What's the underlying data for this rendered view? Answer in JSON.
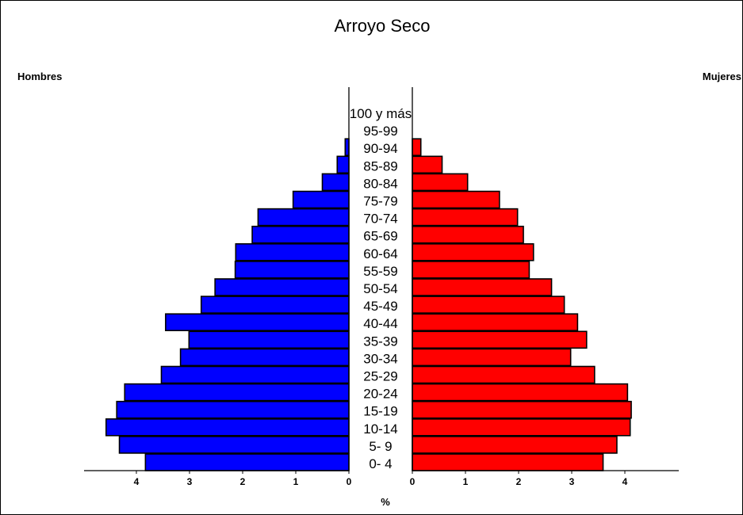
{
  "chart_data": {
    "type": "bar",
    "subtype": "population-pyramid",
    "title": "Arroyo Seco",
    "left_label": "Hombres",
    "right_label": "Mujeres",
    "xlabel": "%",
    "categories": [
      "0- 4",
      "5- 9",
      "10-14",
      "15-19",
      "20-24",
      "25-29",
      "30-34",
      "35-39",
      "40-44",
      "45-49",
      "50-54",
      "55-59",
      "60-64",
      "65-69",
      "70-74",
      "75-79",
      "80-84",
      "85-89",
      "90-94",
      "95-99",
      "100 y más"
    ],
    "series": [
      {
        "name": "Hombres",
        "color": "#0000ff",
        "values": [
          3.83,
          4.32,
          4.57,
          4.37,
          4.22,
          3.53,
          3.17,
          3.01,
          3.45,
          2.78,
          2.52,
          2.14,
          2.13,
          1.82,
          1.71,
          1.05,
          0.5,
          0.22,
          0.07,
          0,
          0
        ]
      },
      {
        "name": "Mujeres",
        "color": "#ff0000",
        "values": [
          3.59,
          3.85,
          4.1,
          4.12,
          4.05,
          3.43,
          2.98,
          3.28,
          3.11,
          2.86,
          2.62,
          2.2,
          2.28,
          2.09,
          1.98,
          1.64,
          1.04,
          0.56,
          0.16,
          0,
          0
        ]
      }
    ],
    "xticks_left": [
      "4",
      "3",
      "2",
      "1",
      "0"
    ],
    "xticks_right": [
      "0",
      "1",
      "2",
      "3",
      "4"
    ],
    "xlim": [
      0,
      5
    ],
    "grid": false,
    "legend": "none"
  }
}
